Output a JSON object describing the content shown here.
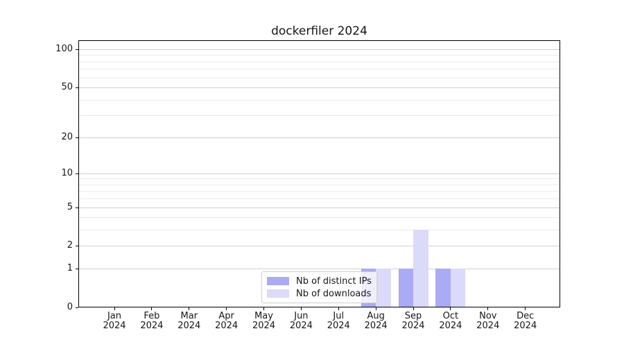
{
  "chart_data": {
    "type": "bar",
    "title": "dockerfiler 2024",
    "categories": [
      "Jan 2024",
      "Feb 2024",
      "Mar 2024",
      "Apr 2024",
      "May 2024",
      "Jun 2024",
      "Jul 2024",
      "Aug 2024",
      "Sep 2024",
      "Oct 2024",
      "Nov 2024",
      "Dec 2024"
    ],
    "series": [
      {
        "name": "Nb of distinct IPs",
        "color": "#aaaaf5",
        "values": [
          0,
          0,
          0,
          0,
          0,
          0,
          0,
          1,
          1,
          1,
          0,
          0
        ]
      },
      {
        "name": "Nb of downloads",
        "color": "#dbdaf8",
        "values": [
          0,
          0,
          0,
          0,
          0,
          0,
          0,
          1,
          3,
          1,
          0,
          0
        ]
      }
    ],
    "xlabel": "",
    "ylabel": "",
    "yscale": "log1p",
    "ylim": [
      0,
      118
    ],
    "y_major_ticks": [
      0,
      1,
      2,
      5,
      10,
      20,
      50,
      100
    ],
    "y_minor_gridlines": [
      3,
      4,
      6,
      7,
      8,
      9,
      30,
      40,
      60,
      70,
      80,
      90
    ],
    "grid": "horizontal",
    "legend_position": "lower center"
  },
  "colors": {
    "major_grid": "#d0d0d0",
    "minor_grid": "#ebebeb",
    "spine": "#000000",
    "background": "#ffffff"
  }
}
